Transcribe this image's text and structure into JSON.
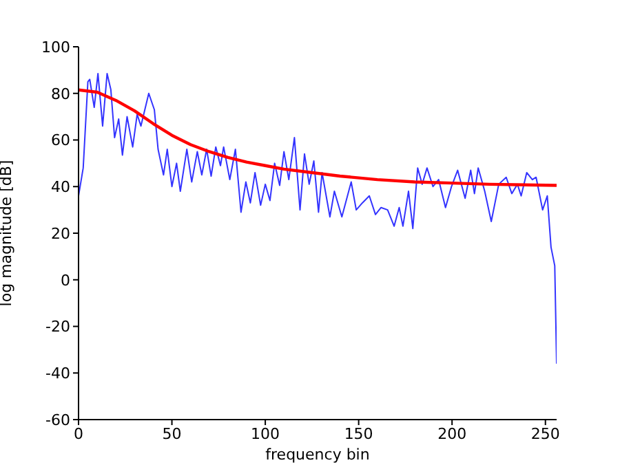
{
  "chart_data": {
    "type": "line",
    "xlabel": "frequency bin",
    "ylabel": "log magnitude [dB]",
    "xlim": [
      0,
      256
    ],
    "xticks": [
      0,
      50,
      100,
      150,
      200,
      250
    ],
    "ylim": [
      -60,
      100
    ],
    "yticks": [
      -60,
      -40,
      -20,
      0,
      20,
      40,
      60,
      80,
      100
    ],
    "grid": false,
    "legend": false,
    "marker": "none",
    "line_style": "solid",
    "series": [
      {
        "color": "#0000ff",
        "x": [
          0,
          2.5,
          5,
          6,
          8.4,
          10.4,
          12.9,
          15.3,
          17.3,
          19.3,
          21.5,
          23.5,
          26,
          29,
          31.4,
          33.4,
          37.6,
          40.6,
          42.6,
          45.5,
          47.5,
          50,
          52.5,
          54.5,
          58,
          60.6,
          63.6,
          66,
          68.6,
          71,
          73.5,
          76,
          77.7,
          81,
          84,
          87,
          89.6,
          92,
          94.5,
          97.5,
          100,
          102.5,
          105,
          107.7,
          110,
          112.6,
          115.6,
          118.6,
          121,
          123.5,
          126,
          128.5,
          130.4,
          134.6,
          137,
          141,
          143,
          146,
          148.7,
          152,
          155.7,
          159,
          162,
          165.5,
          169,
          171.7,
          173.7,
          176.7,
          179,
          181.6,
          184,
          186.6,
          189.8,
          192.8,
          196.5,
          199.7,
          203,
          207,
          210,
          212,
          214,
          217.5,
          221,
          225,
          229,
          232,
          235,
          237,
          240,
          243,
          245,
          248.5,
          251,
          253,
          255,
          256
        ],
        "values": [
          36,
          48,
          85,
          86,
          74,
          88.5,
          66,
          88.5,
          81.6,
          61,
          69,
          53.5,
          70,
          57,
          71,
          66,
          80,
          73,
          56,
          45,
          56,
          40,
          50,
          38,
          56,
          42,
          55,
          45,
          56,
          44.5,
          57,
          49,
          57,
          43,
          56,
          29,
          42,
          33,
          46,
          32,
          41,
          34,
          50,
          40.5,
          55,
          43,
          61,
          30,
          54,
          41,
          51,
          29,
          46,
          27,
          38,
          27,
          33,
          42,
          30,
          33,
          36,
          28,
          31,
          30,
          23,
          31,
          23,
          38,
          22,
          48,
          41,
          48,
          40,
          43,
          31,
          40,
          47,
          35,
          47,
          37,
          48,
          38,
          25,
          41,
          44,
          37,
          41,
          36,
          46,
          43,
          44,
          30,
          36,
          14,
          6,
          -36
        ]
      },
      {
        "color": "#ff0000",
        "x": [
          0,
          10,
          20,
          30,
          40,
          50,
          60,
          70,
          80,
          90,
          100,
          110,
          120,
          140,
          160,
          180,
          200,
          220,
          256
        ],
        "values": [
          81.5,
          80.5,
          77,
          72.5,
          67,
          62,
          58,
          55,
          52.5,
          50.5,
          49,
          47.5,
          46.5,
          44.5,
          43,
          42,
          41.5,
          41,
          40.5
        ]
      }
    ]
  }
}
